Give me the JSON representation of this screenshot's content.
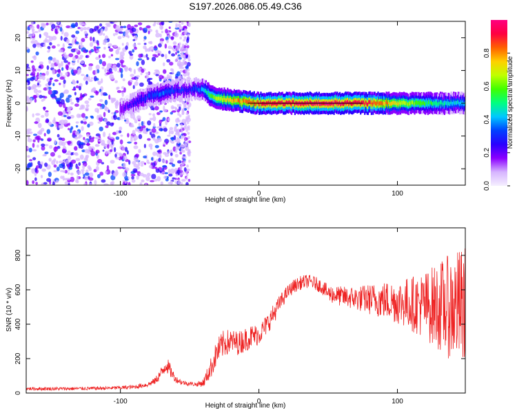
{
  "title": "S197.2026.086.05.49.C36",
  "colors": {
    "snr_line": "#ee2222",
    "frame": "#000000",
    "colorbar_stops": [
      "#f5f0ff",
      "#d6b4ff",
      "#8b00ff",
      "#2a00ff",
      "#0040ff",
      "#00c8ff",
      "#00ff80",
      "#40ff00",
      "#c0ff00",
      "#ffd000",
      "#ff6000",
      "#ff0040",
      "#ff0080"
    ]
  },
  "chart_data": [
    {
      "type": "heatmap",
      "title": "",
      "xlabel": "Height of straight line (km)",
      "ylabel": "Frequency (Hz)",
      "xlim": [
        -168,
        149
      ],
      "ylim": [
        -25,
        25
      ],
      "x_ticks": [
        -100,
        0,
        100
      ],
      "x_tick_labels": [
        "-100",
        "0",
        "100"
      ],
      "y_ticks": [
        -20,
        -10,
        0,
        10,
        20
      ],
      "y_tick_labels": [
        "-20",
        "-10",
        "0",
        "10",
        "20"
      ],
      "colorbar": {
        "label": "Normalized spectral amplitude",
        "range": [
          0,
          1
        ],
        "ticks": [
          0.0,
          0.2,
          0.4,
          0.6,
          0.8
        ],
        "tick_labels": [
          "0.0",
          "0.2",
          "0.4",
          "0.6",
          "0.8"
        ]
      },
      "ridge": {
        "x": [
          -100,
          -90,
          -80,
          -70,
          -60,
          -50,
          -45,
          -40,
          -35,
          -30,
          -20,
          -10,
          0,
          20,
          40,
          60,
          80,
          100,
          120,
          140,
          149
        ],
        "frequency": [
          -2,
          0,
          2,
          3,
          4,
          4,
          4.5,
          4,
          2.5,
          1.5,
          1,
          0.5,
          0,
          0,
          0,
          0,
          0,
          0,
          0,
          0,
          0
        ],
        "amplitude": [
          0.2,
          0.25,
          0.3,
          0.35,
          0.3,
          0.25,
          0.3,
          0.4,
          0.55,
          0.65,
          0.75,
          0.8,
          0.9,
          0.95,
          0.95,
          0.95,
          0.9,
          0.7,
          0.55,
          0.45,
          0.4
        ]
      },
      "noise_region_x": [
        -168,
        -50
      ]
    },
    {
      "type": "line",
      "title": "",
      "xlabel": "Height of straight line (km)",
      "ylabel": "SNR (10 * v/v)",
      "xlim": [
        -168,
        149
      ],
      "ylim": [
        0,
        960
      ],
      "x_ticks": [
        -100,
        0,
        100
      ],
      "x_tick_labels": [
        "-100",
        "0",
        "100"
      ],
      "y_ticks": [
        0,
        200,
        400,
        600,
        800
      ],
      "y_tick_labels": [
        "0",
        "200",
        "400",
        "600",
        "800"
      ],
      "series": [
        {
          "name": "SNR",
          "x": [
            -168,
            -140,
            -110,
            -90,
            -80,
            -75,
            -70,
            -67,
            -64,
            -60,
            -55,
            -50,
            -45,
            -40,
            -35,
            -30,
            -25,
            -20,
            -15,
            -10,
            -5,
            0,
            5,
            10,
            15,
            20,
            25,
            30,
            35,
            40,
            45,
            50,
            60,
            70,
            80,
            90,
            100,
            110,
            120,
            130,
            140,
            149
          ],
          "y": [
            25,
            25,
            28,
            35,
            50,
            70,
            120,
            170,
            130,
            80,
            60,
            55,
            50,
            60,
            140,
            240,
            290,
            300,
            290,
            310,
            330,
            340,
            390,
            450,
            520,
            580,
            620,
            640,
            650,
            640,
            620,
            580,
            560,
            550,
            545,
            540,
            530,
            520,
            510,
            505,
            500,
            500
          ],
          "noise_amplitude": [
            10,
            10,
            10,
            12,
            15,
            20,
            40,
            50,
            40,
            20,
            15,
            12,
            12,
            25,
            60,
            80,
            80,
            70,
            70,
            70,
            70,
            60,
            60,
            60,
            50,
            40,
            40,
            40,
            40,
            40,
            40,
            50,
            60,
            70,
            90,
            110,
            130,
            160,
            200,
            260,
            320,
            360
          ]
        }
      ]
    }
  ]
}
